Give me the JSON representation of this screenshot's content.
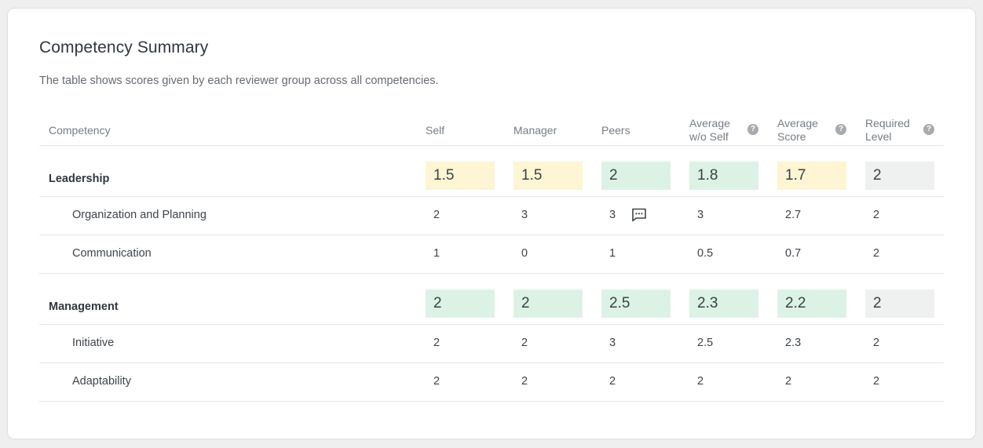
{
  "title": "Competency Summary",
  "subtitle": "The table shows scores given by each reviewer group across all competencies.",
  "colors": {
    "yellow": "#fdf5d3",
    "green": "#dcf2e5",
    "gray": "#eff0f0"
  },
  "columns": {
    "competency": "Competency",
    "self": "Self",
    "manager": "Manager",
    "peers": "Peers",
    "avg_wo_self": "Average\nw/o Self",
    "avg_score": "Average\nScore",
    "required": "Required\nLevel",
    "help_glyph": "?"
  },
  "groups": [
    {
      "name": "Leadership",
      "self": "1.5",
      "self_color": "#fdf5d3",
      "manager": "1.5",
      "manager_color": "#fdf5d3",
      "peers": "2",
      "peers_color": "#dcf2e5",
      "avg_wo_self": "1.8",
      "avg_wo_self_color": "#dcf2e5",
      "avg_score": "1.7",
      "avg_score_color": "#fdf5d3",
      "required": "2",
      "required_color": "#eff0f0",
      "items": [
        {
          "name": "Organization and Planning",
          "self": "2",
          "manager": "3",
          "peers": "3",
          "avg_wo_self": "3",
          "avg_score": "2.7",
          "required": "2",
          "comment_icon": "comment-icon"
        },
        {
          "name": "Communication",
          "self": "1",
          "manager": "0",
          "peers": "1",
          "avg_wo_self": "0.5",
          "avg_score": "0.7",
          "required": "2"
        }
      ]
    },
    {
      "name": "Management",
      "self": "2",
      "self_color": "#dcf2e5",
      "manager": "2",
      "manager_color": "#dcf2e5",
      "peers": "2.5",
      "peers_color": "#dcf2e5",
      "avg_wo_self": "2.3",
      "avg_wo_self_color": "#dcf2e5",
      "avg_score": "2.2",
      "avg_score_color": "#dcf2e5",
      "required": "2",
      "required_color": "#eff0f0",
      "items": [
        {
          "name": "Initiative",
          "self": "2",
          "manager": "2",
          "peers": "3",
          "avg_wo_self": "2.5",
          "avg_score": "2.3",
          "required": "2"
        },
        {
          "name": "Adaptability",
          "self": "2",
          "manager": "2",
          "peers": "2",
          "avg_wo_self": "2",
          "avg_score": "2",
          "required": "2"
        }
      ]
    }
  ]
}
